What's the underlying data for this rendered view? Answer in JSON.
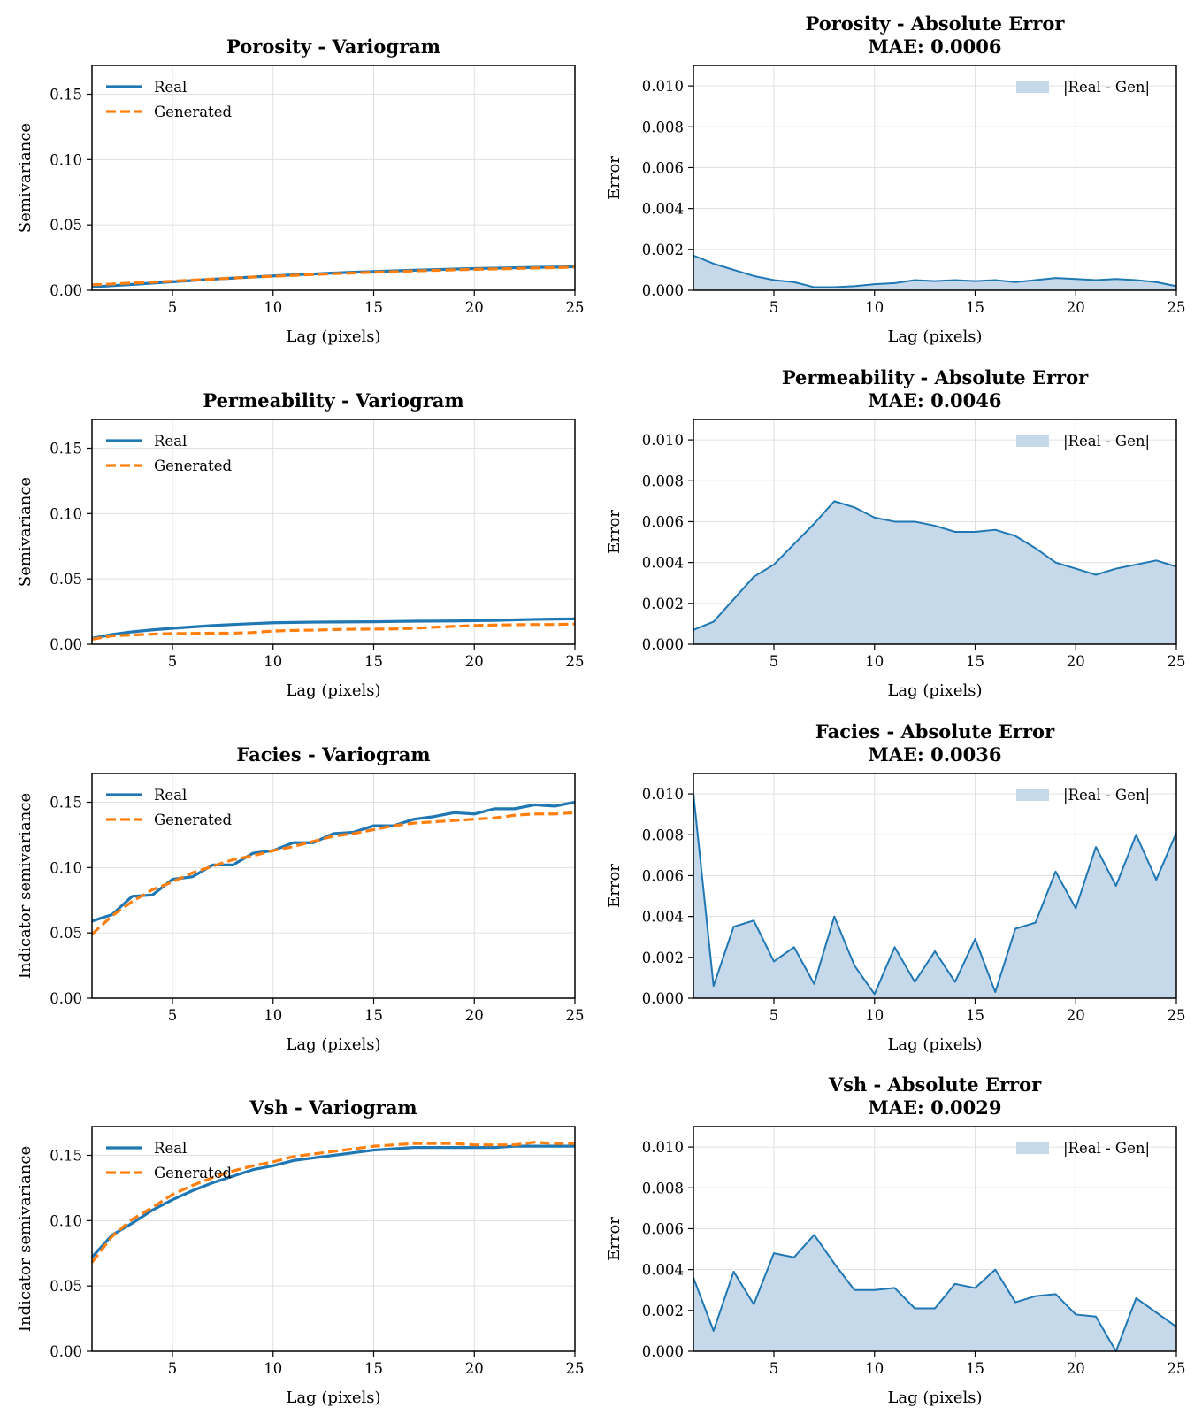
{
  "colors": {
    "real": "#1f77b4",
    "generated": "#ff7f0e",
    "error_line": "#1f77b4",
    "error_fill": "#c6d9ea",
    "grid": "#e0e0e0"
  },
  "chart_data": [
    {
      "type": "line",
      "title": "Porosity - Variogram",
      "xlabel": "Lag (pixels)",
      "ylabel": "Semivariance",
      "xlim": [
        1,
        25
      ],
      "ylim": [
        0,
        0.172
      ],
      "xticks": [
        5,
        10,
        15,
        20,
        25
      ],
      "yticks": [
        0.0,
        0.05,
        0.1,
        0.15
      ],
      "ytick_labels": [
        "0.00",
        "0.05",
        "0.10",
        "0.15"
      ],
      "grid": true,
      "legend_position": "top-left",
      "x": [
        1,
        2,
        3,
        4,
        5,
        6,
        7,
        8,
        9,
        10,
        11,
        12,
        13,
        14,
        15,
        16,
        17,
        18,
        19,
        20,
        21,
        22,
        23,
        24,
        25
      ],
      "series": [
        {
          "name": "Real",
          "style": "solid",
          "values": [
            0.0025,
            0.0035,
            0.0045,
            0.0055,
            0.0065,
            0.0075,
            0.0085,
            0.0093,
            0.0102,
            0.011,
            0.0118,
            0.0125,
            0.0132,
            0.0138,
            0.0143,
            0.0148,
            0.0153,
            0.0158,
            0.0162,
            0.0166,
            0.0169,
            0.0172,
            0.0175,
            0.0177,
            0.018
          ]
        },
        {
          "name": "Generated",
          "style": "dashed",
          "values": [
            0.0042,
            0.0048,
            0.0056,
            0.0062,
            0.007,
            0.0078,
            0.0086,
            0.0094,
            0.0101,
            0.0107,
            0.0114,
            0.012,
            0.0127,
            0.0132,
            0.0138,
            0.0142,
            0.0148,
            0.0152,
            0.0156,
            0.016,
            0.0163,
            0.0166,
            0.017,
            0.0173,
            0.0177
          ]
        }
      ]
    },
    {
      "type": "area",
      "title": "Porosity - Absolute Error",
      "subtitle": "MAE: 0.0006",
      "xlabel": "Lag (pixels)",
      "ylabel": "Error",
      "xlim": [
        1,
        25
      ],
      "ylim": [
        0,
        0.011
      ],
      "xticks": [
        5,
        10,
        15,
        20,
        25
      ],
      "yticks": [
        0.0,
        0.002,
        0.004,
        0.006,
        0.008,
        0.01
      ],
      "ytick_labels": [
        "0.000",
        "0.002",
        "0.004",
        "0.006",
        "0.008",
        "0.010"
      ],
      "grid": true,
      "legend_position": "top-right",
      "x": [
        1,
        2,
        3,
        4,
        5,
        6,
        7,
        8,
        9,
        10,
        11,
        12,
        13,
        14,
        15,
        16,
        17,
        18,
        19,
        20,
        21,
        22,
        23,
        24,
        25
      ],
      "series": [
        {
          "name": "|Real - Gen|",
          "values": [
            0.0017,
            0.0013,
            0.001,
            0.0007,
            0.0005,
            0.0004,
            0.00015,
            0.00015,
            0.0002,
            0.0003,
            0.00035,
            0.0005,
            0.00045,
            0.0005,
            0.00045,
            0.0005,
            0.0004,
            0.0005,
            0.0006,
            0.00055,
            0.0005,
            0.00055,
            0.0005,
            0.0004,
            0.0002
          ]
        }
      ]
    },
    {
      "type": "line",
      "title": "Permeability - Variogram",
      "xlabel": "Lag (pixels)",
      "ylabel": "Semivariance",
      "xlim": [
        1,
        25
      ],
      "ylim": [
        0,
        0.172
      ],
      "xticks": [
        5,
        10,
        15,
        20,
        25
      ],
      "yticks": [
        0.0,
        0.05,
        0.1,
        0.15
      ],
      "ytick_labels": [
        "0.00",
        "0.05",
        "0.10",
        "0.15"
      ],
      "grid": true,
      "legend_position": "top-left",
      "x": [
        1,
        2,
        3,
        4,
        5,
        6,
        7,
        8,
        9,
        10,
        11,
        12,
        13,
        14,
        15,
        16,
        17,
        18,
        19,
        20,
        21,
        22,
        23,
        24,
        25
      ],
      "series": [
        {
          "name": "Real",
          "style": "solid",
          "values": [
            0.0045,
            0.0075,
            0.0095,
            0.011,
            0.0122,
            0.0133,
            0.0143,
            0.0151,
            0.0158,
            0.0164,
            0.0167,
            0.0169,
            0.017,
            0.0171,
            0.0172,
            0.0174,
            0.0176,
            0.0177,
            0.0178,
            0.018,
            0.0182,
            0.0186,
            0.019,
            0.0192,
            0.0194
          ]
        },
        {
          "name": "Generated",
          "style": "dashed",
          "values": [
            0.0038,
            0.0064,
            0.0071,
            0.0077,
            0.0082,
            0.0083,
            0.0085,
            0.0085,
            0.009,
            0.0101,
            0.0106,
            0.0108,
            0.0112,
            0.0115,
            0.0116,
            0.0117,
            0.0122,
            0.013,
            0.0137,
            0.0143,
            0.0147,
            0.0149,
            0.0151,
            0.0151,
            0.0155
          ]
        }
      ]
    },
    {
      "type": "area",
      "title": "Permeability - Absolute Error",
      "subtitle": "MAE: 0.0046",
      "xlabel": "Lag (pixels)",
      "ylabel": "Error",
      "xlim": [
        1,
        25
      ],
      "ylim": [
        0,
        0.011
      ],
      "xticks": [
        5,
        10,
        15,
        20,
        25
      ],
      "yticks": [
        0.0,
        0.002,
        0.004,
        0.006,
        0.008,
        0.01
      ],
      "ytick_labels": [
        "0.000",
        "0.002",
        "0.004",
        "0.006",
        "0.008",
        "0.010"
      ],
      "grid": true,
      "legend_position": "top-right",
      "x": [
        1,
        2,
        3,
        4,
        5,
        6,
        7,
        8,
        9,
        10,
        11,
        12,
        13,
        14,
        15,
        16,
        17,
        18,
        19,
        20,
        21,
        22,
        23,
        24,
        25
      ],
      "series": [
        {
          "name": "|Real - Gen|",
          "values": [
            0.0007,
            0.0011,
            0.0022,
            0.0033,
            0.0039,
            0.0049,
            0.0059,
            0.007,
            0.0067,
            0.0062,
            0.006,
            0.006,
            0.0058,
            0.0055,
            0.0055,
            0.0056,
            0.0053,
            0.0047,
            0.004,
            0.0037,
            0.0034,
            0.0037,
            0.0039,
            0.0041,
            0.0038
          ]
        }
      ]
    },
    {
      "type": "line",
      "title": "Facies - Variogram",
      "xlabel": "Lag (pixels)",
      "ylabel": "Indicator semivariance",
      "xlim": [
        1,
        25
      ],
      "ylim": [
        0,
        0.172
      ],
      "xticks": [
        5,
        10,
        15,
        20,
        25
      ],
      "yticks": [
        0.0,
        0.05,
        0.1,
        0.15
      ],
      "ytick_labels": [
        "0.00",
        "0.05",
        "0.10",
        "0.15"
      ],
      "grid": true,
      "legend_position": "top-left",
      "x": [
        1,
        2,
        3,
        4,
        5,
        6,
        7,
        8,
        9,
        10,
        11,
        12,
        13,
        14,
        15,
        16,
        17,
        18,
        19,
        20,
        21,
        22,
        23,
        24,
        25
      ],
      "series": [
        {
          "name": "Real",
          "style": "solid",
          "values": [
            0.059,
            0.064,
            0.078,
            0.079,
            0.091,
            0.093,
            0.102,
            0.102,
            0.111,
            0.113,
            0.119,
            0.119,
            0.126,
            0.127,
            0.132,
            0.132,
            0.137,
            0.139,
            0.142,
            0.141,
            0.145,
            0.145,
            0.148,
            0.147,
            0.15
          ]
        },
        {
          "name": "Generated",
          "style": "dashed",
          "values": [
            0.049,
            0.063,
            0.074,
            0.083,
            0.089,
            0.096,
            0.101,
            0.106,
            0.109,
            0.113,
            0.116,
            0.12,
            0.124,
            0.126,
            0.129,
            0.132,
            0.134,
            0.135,
            0.136,
            0.137,
            0.138,
            0.14,
            0.141,
            0.141,
            0.142
          ]
        }
      ]
    },
    {
      "type": "area",
      "title": "Facies - Absolute Error",
      "subtitle": "MAE: 0.0036",
      "xlabel": "Lag (pixels)",
      "ylabel": "Error",
      "xlim": [
        1,
        25
      ],
      "ylim": [
        0,
        0.011
      ],
      "xticks": [
        5,
        10,
        15,
        20,
        25
      ],
      "yticks": [
        0.0,
        0.002,
        0.004,
        0.006,
        0.008,
        0.01
      ],
      "ytick_labels": [
        "0.000",
        "0.002",
        "0.004",
        "0.006",
        "0.008",
        "0.010"
      ],
      "grid": true,
      "legend_position": "top-right",
      "x": [
        1,
        2,
        3,
        4,
        5,
        6,
        7,
        8,
        9,
        10,
        11,
        12,
        13,
        14,
        15,
        16,
        17,
        18,
        19,
        20,
        21,
        22,
        23,
        24,
        25
      ],
      "series": [
        {
          "name": "|Real - Gen|",
          "values": [
            0.01,
            0.0006,
            0.0035,
            0.0038,
            0.0018,
            0.0025,
            0.0007,
            0.004,
            0.0016,
            0.0002,
            0.0025,
            0.0008,
            0.0023,
            0.0008,
            0.0029,
            0.0003,
            0.0034,
            0.0037,
            0.0062,
            0.0044,
            0.0074,
            0.0055,
            0.008,
            0.0058,
            0.0081
          ]
        }
      ]
    },
    {
      "type": "line",
      "title": "Vsh - Variogram",
      "xlabel": "Lag (pixels)",
      "ylabel": "Indicator semivariance",
      "xlim": [
        1,
        25
      ],
      "ylim": [
        0,
        0.172
      ],
      "xticks": [
        5,
        10,
        15,
        20,
        25
      ],
      "yticks": [
        0.0,
        0.05,
        0.1,
        0.15
      ],
      "ytick_labels": [
        "0.00",
        "0.05",
        "0.10",
        "0.15"
      ],
      "grid": true,
      "legend_position": "top-left",
      "x": [
        1,
        2,
        3,
        4,
        5,
        6,
        7,
        8,
        9,
        10,
        11,
        12,
        13,
        14,
        15,
        16,
        17,
        18,
        19,
        20,
        21,
        22,
        23,
        24,
        25
      ],
      "series": [
        {
          "name": "Real",
          "style": "solid",
          "values": [
            0.072,
            0.089,
            0.098,
            0.108,
            0.116,
            0.123,
            0.129,
            0.134,
            0.139,
            0.142,
            0.146,
            0.148,
            0.15,
            0.152,
            0.154,
            0.155,
            0.156,
            0.156,
            0.156,
            0.156,
            0.156,
            0.157,
            0.157,
            0.157,
            0.157
          ]
        },
        {
          "name": "Generated",
          "style": "dashed",
          "values": [
            0.068,
            0.088,
            0.101,
            0.11,
            0.12,
            0.127,
            0.133,
            0.138,
            0.142,
            0.145,
            0.149,
            0.151,
            0.153,
            0.155,
            0.157,
            0.158,
            0.159,
            0.159,
            0.159,
            0.158,
            0.158,
            0.158,
            0.16,
            0.159,
            0.159
          ]
        }
      ]
    },
    {
      "type": "area",
      "title": "Vsh - Absolute Error",
      "subtitle": "MAE: 0.0029",
      "xlabel": "Lag (pixels)",
      "ylabel": "Error",
      "xlim": [
        1,
        25
      ],
      "ylim": [
        0,
        0.011
      ],
      "xticks": [
        5,
        10,
        15,
        20,
        25
      ],
      "yticks": [
        0.0,
        0.002,
        0.004,
        0.006,
        0.008,
        0.01
      ],
      "ytick_labels": [
        "0.000",
        "0.002",
        "0.004",
        "0.006",
        "0.008",
        "0.010"
      ],
      "grid": true,
      "legend_position": "top-right",
      "x": [
        1,
        2,
        3,
        4,
        5,
        6,
        7,
        8,
        9,
        10,
        11,
        12,
        13,
        14,
        15,
        16,
        17,
        18,
        19,
        20,
        21,
        22,
        23,
        24,
        25
      ],
      "series": [
        {
          "name": "|Real - Gen|",
          "values": [
            0.0036,
            0.001,
            0.0039,
            0.0023,
            0.0048,
            0.0046,
            0.0057,
            0.0043,
            0.003,
            0.003,
            0.0031,
            0.0021,
            0.0021,
            0.0033,
            0.0031,
            0.004,
            0.0024,
            0.0027,
            0.0028,
            0.0018,
            0.0017,
            0.0,
            0.0026,
            0.0019,
            0.0012
          ]
        }
      ]
    }
  ]
}
